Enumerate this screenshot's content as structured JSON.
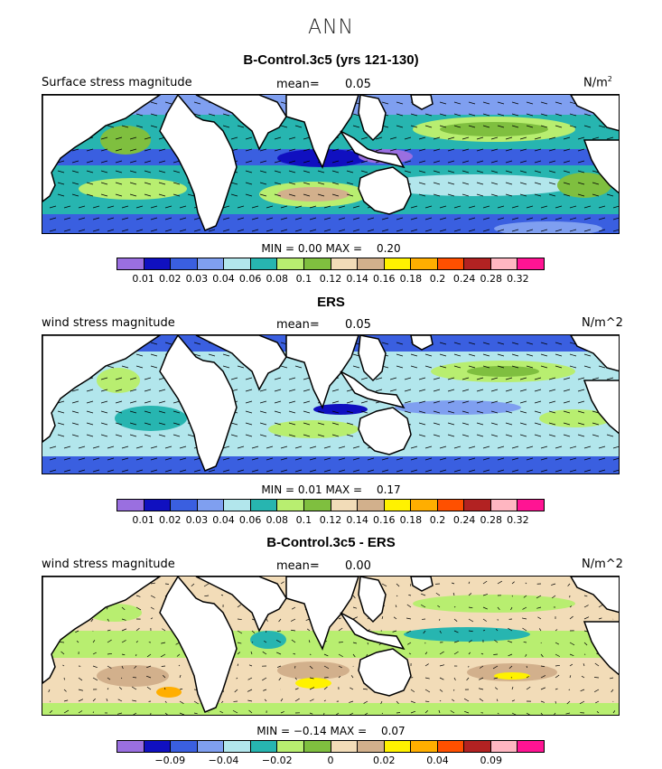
{
  "figure_title": "ANN",
  "colorbar_colors": [
    "#9a6fe0",
    "#1010c0",
    "#3a5fe0",
    "#7f9ff0",
    "#b2e6ec",
    "#27b5b0",
    "#b8ee70",
    "#7fbf3f",
    "#f2dcb8",
    "#d2b08c",
    "#fff200",
    "#ffae00",
    "#ff5000",
    "#b22222",
    "#ffb6c1",
    "#ff1493"
  ],
  "panels": [
    {
      "title": "B-Control.3c5 (yrs 121-130)",
      "left_label": "Surface stress magnitude",
      "mean_label": "mean=",
      "mean_value": "0.05",
      "units": "N/m",
      "units_sup": "2",
      "min_label": "MIN =",
      "min_value": "0.00",
      "max_label": "MAX =",
      "max_value": "0.20",
      "ticks": [
        "0.01",
        "0.02",
        "0.03",
        "0.04",
        "0.06",
        "0.08",
        "0.1",
        "0.12",
        "0.14",
        "0.16",
        "0.18",
        "0.2",
        "0.24",
        "0.28",
        "0.32"
      ]
    },
    {
      "title": "ERS",
      "left_label": "wind stress magnitude",
      "mean_label": "mean=",
      "mean_value": "0.05",
      "units": "N/m^2",
      "units_sup": "",
      "min_label": "MIN =",
      "min_value": "0.01",
      "max_label": "MAX =",
      "max_value": "0.17",
      "ticks": [
        "0.01",
        "0.02",
        "0.03",
        "0.04",
        "0.06",
        "0.08",
        "0.1",
        "0.12",
        "0.14",
        "0.16",
        "0.18",
        "0.2",
        "0.24",
        "0.28",
        "0.32"
      ]
    },
    {
      "title": "B-Control.3c5 - ERS",
      "left_label": "wind stress magnitude",
      "mean_label": "mean=",
      "mean_value": "0.00",
      "units": "N/m^2",
      "units_sup": "",
      "min_label": "MIN =",
      "min_value": "−0.14",
      "max_label": "MAX =",
      "max_value": "0.07",
      "ticks": [
        "",
        "−0.09",
        "",
        "−0.04",
        "",
        "−0.02",
        "",
        "0",
        "",
        "0.02",
        "",
        "0.04",
        "",
        "0.09",
        ""
      ]
    }
  ],
  "chart_data": [
    {
      "type": "heatmap",
      "title": "B-Control.3c5 (yrs 121-130)",
      "subtitle": "Surface stress magnitude",
      "units": "N/m2",
      "mean": 0.05,
      "min": 0.0,
      "max": 0.2,
      "colorbar_levels": [
        0.01,
        0.02,
        0.03,
        0.04,
        0.06,
        0.08,
        0.1,
        0.12,
        0.14,
        0.16,
        0.18,
        0.2,
        0.24,
        0.28,
        0.32
      ],
      "overlay": "wind stress vectors"
    },
    {
      "type": "heatmap",
      "title": "ERS",
      "subtitle": "wind stress magnitude",
      "units": "N/m^2",
      "mean": 0.05,
      "min": 0.01,
      "max": 0.17,
      "colorbar_levels": [
        0.01,
        0.02,
        0.03,
        0.04,
        0.06,
        0.08,
        0.1,
        0.12,
        0.14,
        0.16,
        0.18,
        0.2,
        0.24,
        0.28,
        0.32
      ],
      "overlay": "wind stress vectors"
    },
    {
      "type": "heatmap",
      "title": "B-Control.3c5 - ERS",
      "subtitle": "wind stress magnitude",
      "units": "N/m^2",
      "mean": 0.0,
      "min": -0.14,
      "max": 0.07,
      "colorbar_levels": [
        -0.09,
        -0.04,
        -0.02,
        0,
        0.02,
        0.04,
        0.09
      ],
      "overlay": "wind stress difference vectors"
    }
  ]
}
